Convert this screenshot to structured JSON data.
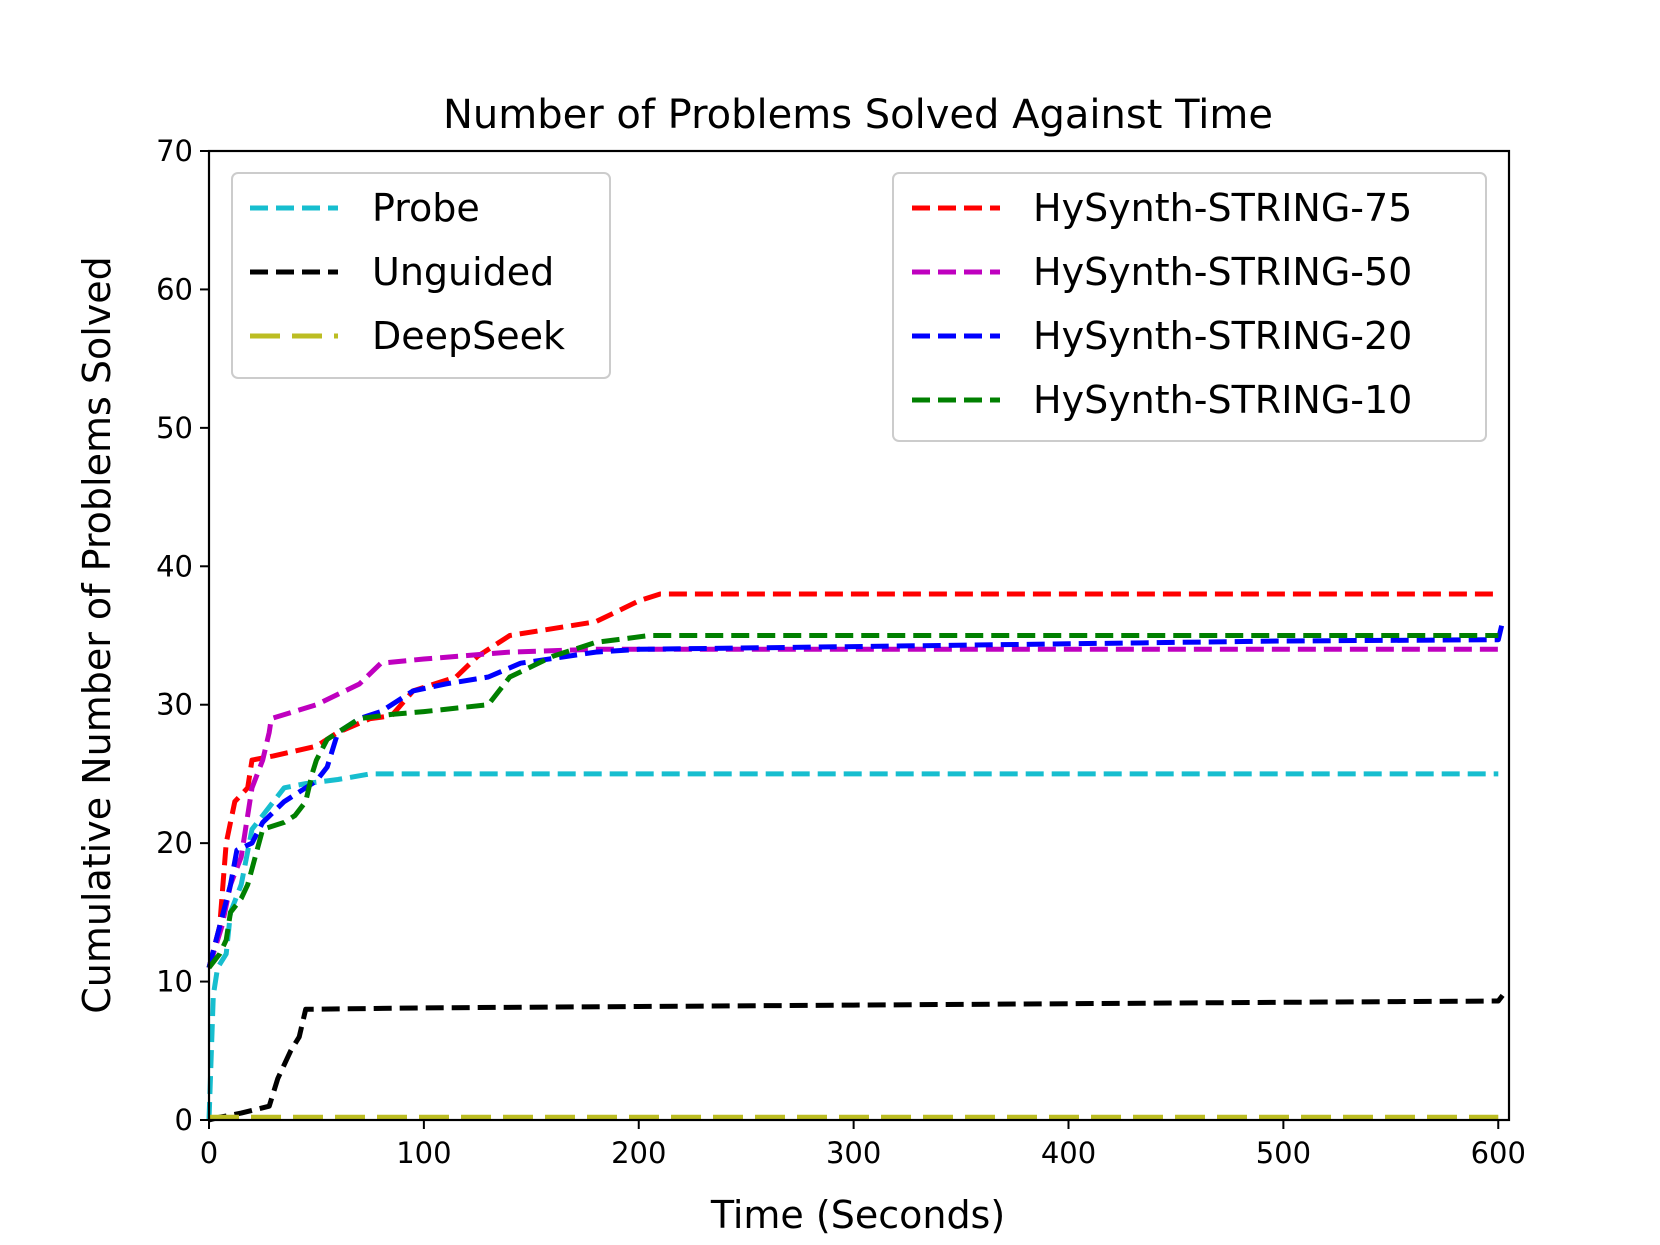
{
  "chart_data": {
    "type": "line",
    "title": "Number of Problems Solved Against Time",
    "xlabel": "Time (Seconds)",
    "ylabel": "Cumulative Number of Problems Solved",
    "xlim": [
      0,
      605
    ],
    "ylim": [
      0,
      70
    ],
    "xticks": [
      0,
      100,
      200,
      300,
      400,
      500,
      600
    ],
    "yticks": [
      0,
      10,
      20,
      30,
      40,
      50,
      60,
      70
    ],
    "grid": false,
    "legends": [
      {
        "placement": "top-left",
        "series": [
          "Probe",
          "Unguided",
          "DeepSeek"
        ]
      },
      {
        "placement": "top-right",
        "series": [
          "HySynth-STRING-75",
          "HySynth-STRING-50",
          "HySynth-STRING-20",
          "HySynth-STRING-10"
        ]
      }
    ],
    "series": [
      {
        "name": "Probe",
        "color": "#17becf",
        "dash": "dashed",
        "points": [
          [
            0,
            0
          ],
          [
            2,
            9
          ],
          [
            4,
            11
          ],
          [
            8,
            12
          ],
          [
            10,
            15
          ],
          [
            15,
            17
          ],
          [
            20,
            21
          ],
          [
            25,
            22
          ],
          [
            35,
            24
          ],
          [
            45,
            24.3
          ],
          [
            60,
            24.6
          ],
          [
            75,
            25
          ],
          [
            150,
            25
          ],
          [
            300,
            25
          ],
          [
            450,
            25
          ],
          [
            600,
            25
          ]
        ]
      },
      {
        "name": "Unguided",
        "color": "#000000",
        "dash": "dashed",
        "points": [
          [
            0,
            0
          ],
          [
            5,
            0.2
          ],
          [
            15,
            0.5
          ],
          [
            28,
            1
          ],
          [
            32,
            3
          ],
          [
            38,
            5
          ],
          [
            42,
            6
          ],
          [
            45,
            8
          ],
          [
            100,
            8.1
          ],
          [
            200,
            8.2
          ],
          [
            300,
            8.3
          ],
          [
            400,
            8.4
          ],
          [
            500,
            8.5
          ],
          [
            600,
            8.6
          ],
          [
            602,
            9
          ]
        ]
      },
      {
        "name": "DeepSeek",
        "color": "#bcbd22",
        "dash": "long-dashed",
        "points": [
          [
            0,
            0.2
          ],
          [
            600,
            0.2
          ]
        ]
      },
      {
        "name": "HySynth-STRING-75",
        "color": "#ff0000",
        "dash": "dashed",
        "points": [
          [
            0,
            11
          ],
          [
            5,
            14
          ],
          [
            8,
            20
          ],
          [
            12,
            23
          ],
          [
            18,
            24
          ],
          [
            20,
            26
          ],
          [
            30,
            26.3
          ],
          [
            50,
            27
          ],
          [
            60,
            28
          ],
          [
            75,
            29
          ],
          [
            85,
            29.2
          ],
          [
            95,
            31
          ],
          [
            115,
            32
          ],
          [
            125,
            33.5
          ],
          [
            140,
            35
          ],
          [
            180,
            36
          ],
          [
            200,
            37.5
          ],
          [
            210,
            38
          ],
          [
            300,
            38
          ],
          [
            400,
            38
          ],
          [
            500,
            38
          ],
          [
            600,
            38
          ]
        ]
      },
      {
        "name": "HySynth-STRING-50",
        "color": "#bf00bf",
        "dash": "dashed",
        "points": [
          [
            0,
            11
          ],
          [
            6,
            14
          ],
          [
            10,
            17
          ],
          [
            15,
            19
          ],
          [
            20,
            24
          ],
          [
            25,
            26
          ],
          [
            28,
            28
          ],
          [
            29,
            29
          ],
          [
            50,
            30
          ],
          [
            70,
            31.5
          ],
          [
            80,
            33
          ],
          [
            100,
            33.3
          ],
          [
            140,
            33.8
          ],
          [
            180,
            34
          ],
          [
            300,
            34
          ],
          [
            450,
            34
          ],
          [
            600,
            34
          ]
        ]
      },
      {
        "name": "HySynth-STRING-20",
        "color": "#0000ff",
        "dash": "dashed",
        "points": [
          [
            0,
            11
          ],
          [
            5,
            14
          ],
          [
            10,
            17
          ],
          [
            13,
            19.5
          ],
          [
            20,
            20
          ],
          [
            25,
            21.5
          ],
          [
            35,
            23
          ],
          [
            45,
            24
          ],
          [
            50,
            24.5
          ],
          [
            55,
            25.5
          ],
          [
            60,
            28
          ],
          [
            70,
            29
          ],
          [
            80,
            29.5
          ],
          [
            95,
            31
          ],
          [
            110,
            31.5
          ],
          [
            130,
            32
          ],
          [
            145,
            33
          ],
          [
            180,
            33.8
          ],
          [
            200,
            34
          ],
          [
            300,
            34.2
          ],
          [
            400,
            34.4
          ],
          [
            500,
            34.6
          ],
          [
            600,
            34.7
          ],
          [
            602,
            36
          ]
        ]
      },
      {
        "name": "HySynth-STRING-10",
        "color": "#008000",
        "dash": "dashed",
        "points": [
          [
            0,
            11
          ],
          [
            5,
            12
          ],
          [
            8,
            13
          ],
          [
            10,
            15
          ],
          [
            15,
            16
          ],
          [
            18,
            17
          ],
          [
            25,
            21
          ],
          [
            35,
            21.5
          ],
          [
            40,
            22
          ],
          [
            45,
            23
          ],
          [
            48,
            25
          ],
          [
            50,
            26
          ],
          [
            55,
            27.5
          ],
          [
            60,
            28
          ],
          [
            70,
            29
          ],
          [
            85,
            29.3
          ],
          [
            100,
            29.5
          ],
          [
            130,
            30
          ],
          [
            140,
            32
          ],
          [
            160,
            33.5
          ],
          [
            180,
            34.5
          ],
          [
            205,
            35
          ],
          [
            300,
            35
          ],
          [
            450,
            35
          ],
          [
            600,
            35
          ]
        ]
      }
    ]
  }
}
